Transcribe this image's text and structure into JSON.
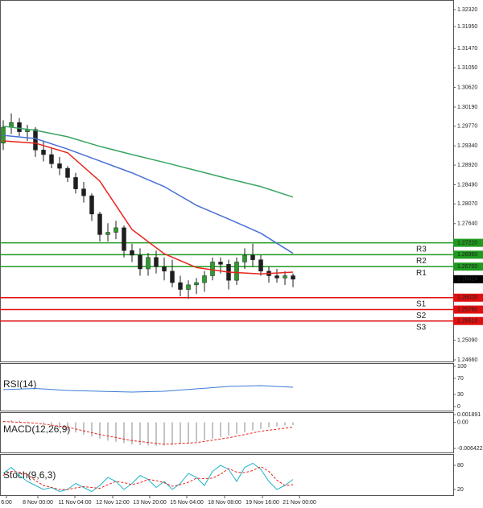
{
  "chart_data": [
    {
      "type": "candlestick",
      "open": [
        1.294,
        1.2975,
        1.2985,
        1.2965,
        1.297,
        1.2925,
        1.2915,
        1.2895,
        1.2885,
        1.2865,
        1.284,
        1.2825,
        1.2785,
        1.274,
        1.2745,
        1.2755,
        1.2705,
        1.2695,
        1.2665,
        1.269,
        1.267,
        1.266,
        1.2635,
        1.262,
        1.263,
        1.2635,
        1.265,
        1.268,
        1.2675,
        1.264,
        1.268,
        1.2695,
        1.2685,
        1.266,
        1.265,
        1.2645,
        1.265
      ],
      "high": [
        1.299,
        1.3005,
        1.2995,
        1.298,
        1.2975,
        1.2945,
        1.293,
        1.291,
        1.289,
        1.2875,
        1.2855,
        1.283,
        1.279,
        1.2765,
        1.277,
        1.276,
        1.272,
        1.271,
        1.27,
        1.2705,
        1.269,
        1.2685,
        1.265,
        1.264,
        1.2645,
        1.266,
        1.269,
        1.269,
        1.2685,
        1.269,
        1.271,
        1.272,
        1.2695,
        1.267,
        1.2665,
        1.266,
        1.2655
      ],
      "low": [
        1.2925,
        1.296,
        1.2955,
        1.2945,
        1.291,
        1.29,
        1.2885,
        1.287,
        1.2855,
        1.283,
        1.281,
        1.277,
        1.2725,
        1.2725,
        1.273,
        1.269,
        1.268,
        1.265,
        1.265,
        1.2655,
        1.264,
        1.2625,
        1.2605,
        1.26,
        1.261,
        1.2615,
        1.264,
        1.2655,
        1.262,
        1.263,
        1.2665,
        1.267,
        1.265,
        1.2635,
        1.2635,
        1.263,
        1.2625
      ],
      "close": [
        1.2975,
        1.2985,
        1.2965,
        1.297,
        1.2925,
        1.2915,
        1.2895,
        1.2885,
        1.2865,
        1.284,
        1.2825,
        1.2785,
        1.274,
        1.2745,
        1.2755,
        1.2705,
        1.2695,
        1.2665,
        1.269,
        1.267,
        1.266,
        1.2635,
        1.262,
        1.263,
        1.2635,
        1.265,
        1.268,
        1.2675,
        1.264,
        1.268,
        1.2695,
        1.2685,
        1.266,
        1.265,
        1.2645,
        1.265,
        1.26424
      ],
      "up_color": "#2f9a2f",
      "down_color": "#1e1e1e",
      "series": [
        {
          "color": "#e8231b",
          "x": [
            0,
            4,
            8,
            12,
            16,
            20,
            24,
            28,
            32,
            36
          ],
          "values": [
            1.2945,
            1.294,
            1.2919,
            1.2857,
            1.2751,
            1.2698,
            1.2668,
            1.2658,
            1.2654,
            1.2658
          ]
        },
        {
          "color": "#4a6fd6",
          "x": [
            0,
            4,
            8,
            12,
            16,
            20,
            24,
            28,
            32,
            36
          ],
          "values": [
            1.2957,
            1.295,
            1.2927,
            1.2901,
            1.2875,
            1.2845,
            1.2804,
            1.2774,
            1.2743,
            1.2699
          ]
        },
        {
          "color": "#3aa564",
          "x": [
            0,
            4,
            8,
            12,
            16,
            20,
            24,
            28,
            32,
            36
          ],
          "values": [
            1.2977,
            1.2968,
            1.2954,
            1.2933,
            1.2915,
            1.2898,
            1.288,
            1.2862,
            1.2845,
            1.2822
          ]
        }
      ],
      "ylim": [
        1.2466,
        1.3232
      ],
      "yticks": [
        {
          "value": 1.3232,
          "label": "1.32320"
        },
        {
          "value": 1.3195,
          "label": "1.31950"
        },
        {
          "value": 1.3147,
          "label": "1.31470"
        },
        {
          "value": 1.3105,
          "label": "1.31050"
        },
        {
          "value": 1.3062,
          "label": "1.30620"
        },
        {
          "value": 1.3019,
          "label": "1.30190"
        },
        {
          "value": 1.2977,
          "label": "1.29770"
        },
        {
          "value": 1.2934,
          "label": "1.29340"
        },
        {
          "value": 1.2892,
          "label": "1.28920"
        },
        {
          "value": 1.2849,
          "label": "1.28490"
        },
        {
          "value": 1.2807,
          "label": "1.28070"
        },
        {
          "value": 1.2764,
          "label": "1.27640"
        },
        {
          "value": 1.2509,
          "label": "1.25090"
        },
        {
          "value": 1.2466,
          "label": "1.24660"
        }
      ],
      "pivots": [
        {
          "name": "R3",
          "value": 1.2722,
          "label": "1.27220",
          "color": "#1f9a1f"
        },
        {
          "name": "R2",
          "value": 1.2696,
          "label": "1.26960",
          "color": "#1f9a1f"
        },
        {
          "name": "R1",
          "value": 1.267,
          "label": "1.26700",
          "color": "#1f9a1f"
        },
        {
          "name": "S1",
          "value": 1.2602,
          "label": "1.26020",
          "color": "#e01010"
        },
        {
          "name": "S2",
          "value": 1.2576,
          "label": "1.25760",
          "color": "#e01010"
        },
        {
          "name": "S3",
          "value": 1.2551,
          "label": "1.25510",
          "color": "#e01010"
        }
      ],
      "last": 1.26424,
      "xticks": [
        {
          "value": 0.4,
          "label": "6:00"
        },
        {
          "value": 4.3,
          "label": "8 Nov 00:00"
        },
        {
          "value": 8.9,
          "label": "11 Nov 04:00"
        },
        {
          "value": 13.6,
          "label": "12 Nov 12:00"
        },
        {
          "value": 18.2,
          "label": "13 Nov 20:00"
        },
        {
          "value": 22.8,
          "label": "15 Nov 04:00"
        },
        {
          "value": 27.5,
          "label": "18 Nov 08:00"
        },
        {
          "value": 32.2,
          "label": "19 Nov 16:00"
        },
        {
          "value": 36.8,
          "label": "21 Nov 00:00"
        }
      ]
    },
    {
      "type": "line",
      "title": "RSI(14)",
      "series": [
        {
          "color": "#3a7bd5",
          "style": "solid",
          "x": [
            0,
            4,
            8,
            12,
            16,
            20,
            24,
            28,
            32,
            36
          ],
          "values": [
            42,
            45,
            40,
            38,
            36,
            38,
            44,
            50,
            52,
            48
          ]
        }
      ],
      "ylim": [
        0,
        100
      ],
      "yticks": [
        100,
        70,
        30,
        0
      ]
    },
    {
      "type": "bar",
      "title": "MACD(12,26,9)",
      "values": [
        0.0003,
        0.0005,
        0.0004,
        0.0002,
        0,
        -0.0005,
        -0.001,
        -0.0015,
        -0.002,
        -0.0025,
        -0.003,
        -0.0035,
        -0.004,
        -0.0045,
        -0.0048,
        -0.0051,
        -0.0054,
        -0.0056,
        -0.0057,
        -0.0058,
        -0.0057,
        -0.0056,
        -0.0054,
        -0.0051,
        -0.0048,
        -0.0044,
        -0.004,
        -0.0036,
        -0.0032,
        -0.0028,
        -0.0024,
        -0.002,
        -0.0016,
        -0.0013,
        -0.001,
        -0.0008,
        -0.0007
      ],
      "color": "#b0b0b0",
      "series": [
        {
          "color": "#e8231b",
          "style": "dashed",
          "x": [
            0,
            4,
            8,
            12,
            16,
            20,
            24,
            28,
            32,
            36
          ],
          "values": [
            0.0002,
            -0.0002,
            -0.0012,
            -0.003,
            -0.0045,
            -0.0054,
            -0.005,
            -0.0038,
            -0.0022,
            -0.0012
          ]
        }
      ],
      "ylim": [
        -0.006422,
        0.001891
      ],
      "yticks": [
        0.001891,
        {
          "value": 0,
          "label": "0.00"
        },
        -0.006422
      ]
    },
    {
      "type": "line",
      "title": "Stoch(9,6,3)",
      "series": [
        {
          "color": "#20b5c8",
          "style": "solid",
          "values": [
            60,
            75,
            55,
            40,
            30,
            20,
            25,
            15,
            20,
            35,
            25,
            15,
            30,
            50,
            40,
            20,
            35,
            55,
            45,
            25,
            40,
            20,
            35,
            60,
            50,
            30,
            65,
            80,
            70,
            40,
            75,
            85,
            70,
            40,
            20,
            30,
            45
          ]
        },
        {
          "color": "#e8231b",
          "style": "dashed",
          "values": [
            55,
            65,
            63,
            57,
            42,
            30,
            25,
            20,
            20,
            24,
            27,
            25,
            23,
            32,
            40,
            37,
            32,
            37,
            45,
            42,
            37,
            28,
            32,
            38,
            48,
            47,
            48,
            58,
            72,
            63,
            62,
            67,
            77,
            65,
            43,
            30,
            32
          ]
        }
      ],
      "ylim": [
        0,
        100
      ],
      "yticks": [
        80,
        20
      ]
    }
  ]
}
